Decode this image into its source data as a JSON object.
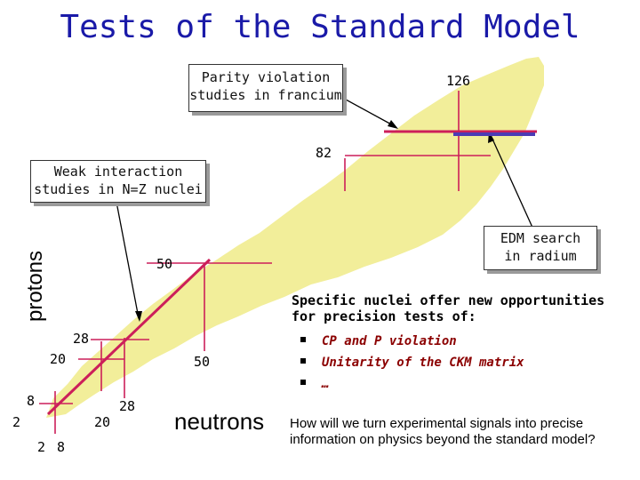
{
  "title": "Tests of the Standard Model",
  "callouts": {
    "parity": [
      "Parity violation",
      "studies in francium"
    ],
    "weak": [
      "Weak interaction",
      "studies in N=Z nuclei"
    ],
    "edm": [
      "EDM search",
      "in radium"
    ]
  },
  "magic_numbers": {
    "n126": "126",
    "n82": "82",
    "n50_mid": "50",
    "n50_low": "50",
    "n28_left": "28",
    "n20_left": "20",
    "n8_left": "8",
    "n2_left": "2",
    "n28_bottom": "28",
    "n20_bottom": "20",
    "n2_axis": "2",
    "n8_axis": "8"
  },
  "axes": {
    "y": "protons",
    "x": "neutrons"
  },
  "opportunities": {
    "heading": "Specific nuclei offer new opportunities for precision tests of:",
    "items": [
      "CP and P violation",
      "Unitarity of the CKM matrix",
      "…"
    ]
  },
  "question": "How will we turn experimental signals into precise information on physics beyond the standard model?",
  "colors": {
    "title": "#1a1aa8",
    "band": "#f2ee9a",
    "line": "#cc1f5a",
    "bar": "#4b3bb5",
    "bullet": "#8b0000"
  }
}
